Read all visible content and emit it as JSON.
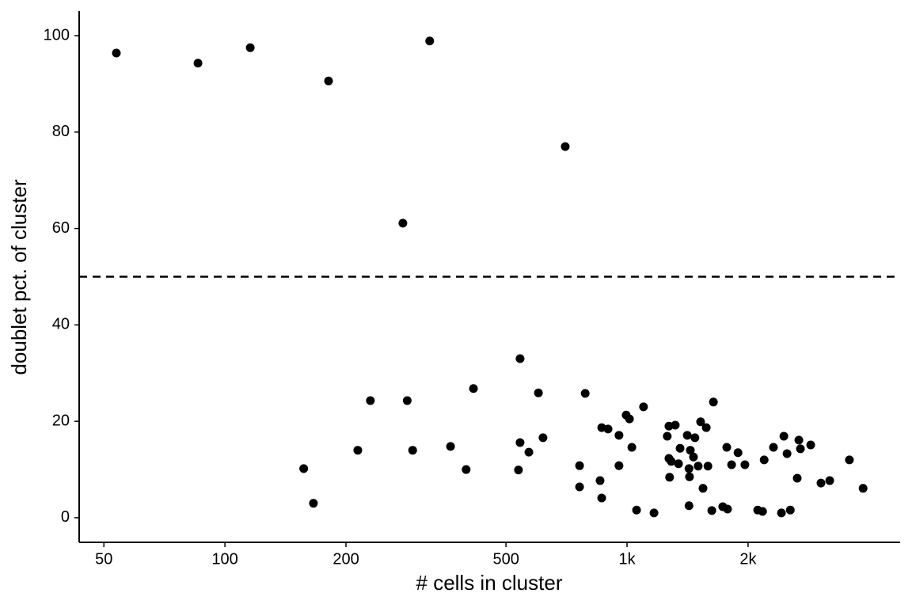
{
  "chart_data": {
    "type": "scatter",
    "x_label": "# cells in cluster",
    "y_label": "doublet pct. of cluster",
    "x_scale": "log",
    "color": "#000000",
    "hline": 50,
    "xlim": [
      43.4,
      4777
    ],
    "ylim": [
      -5.1,
      105.1
    ],
    "xticks": [
      50,
      100,
      200,
      500,
      {
        "value": 1000,
        "label": "1k"
      },
      {
        "value": 2000,
        "label": "2k"
      }
    ],
    "yticks": [
      0,
      20,
      40,
      60,
      80,
      100
    ],
    "x": [
      53.7,
      85.7,
      115.6,
      181,
      323,
      702,
      277,
      542,
      157,
      166,
      214,
      230,
      284,
      293,
      364,
      398,
      415,
      537,
      542,
      570,
      602,
      618,
      787,
      762,
      762,
      857,
      865,
      865,
      897,
      955,
      955,
      995,
      1014,
      1028,
      1056,
      1099,
      1167,
      1259,
      1271,
      1271,
      1276,
      1288,
      1318,
      1343,
      1355,
      1412,
      1426,
      1426,
      1430,
      1437,
      1463,
      1475,
      1503,
      1524,
      1545,
      1574,
      1589,
      1640,
      1625,
      1730,
      1778,
      1770,
      1820,
      1888,
      1964,
      2113,
      2173,
      2193,
      2313,
      2421,
      2455,
      2500,
      2547,
      2650,
      2675,
      2699,
      2863,
      3036,
      3192,
      3573,
      3864
    ],
    "values": [
      96.4,
      94.3,
      97.5,
      90.6,
      98.9,
      77.0,
      61.1,
      33.0,
      10.2,
      3.0,
      14.0,
      24.3,
      24.3,
      14.0,
      14.8,
      10.0,
      26.8,
      9.9,
      15.6,
      13.6,
      25.9,
      16.6,
      25.8,
      10.8,
      6.4,
      7.7,
      4.1,
      18.7,
      18.4,
      17.1,
      10.8,
      21.3,
      20.5,
      14.6,
      1.6,
      23.0,
      1.0,
      16.9,
      19.0,
      12.3,
      8.4,
      11.7,
      19.2,
      11.2,
      14.4,
      17.1,
      2.5,
      10.2,
      8.5,
      14.0,
      12.6,
      16.6,
      10.7,
      19.9,
      6.1,
      18.7,
      10.7,
      24.0,
      1.5,
      2.3,
      1.8,
      14.6,
      11.0,
      13.5,
      11.0,
      1.6,
      1.3,
      12.0,
      14.6,
      1.0,
      16.9,
      13.3,
      1.6,
      8.2,
      16.1,
      14.3,
      15.1,
      7.2,
      7.7,
      12.0,
      6.1
    ]
  }
}
